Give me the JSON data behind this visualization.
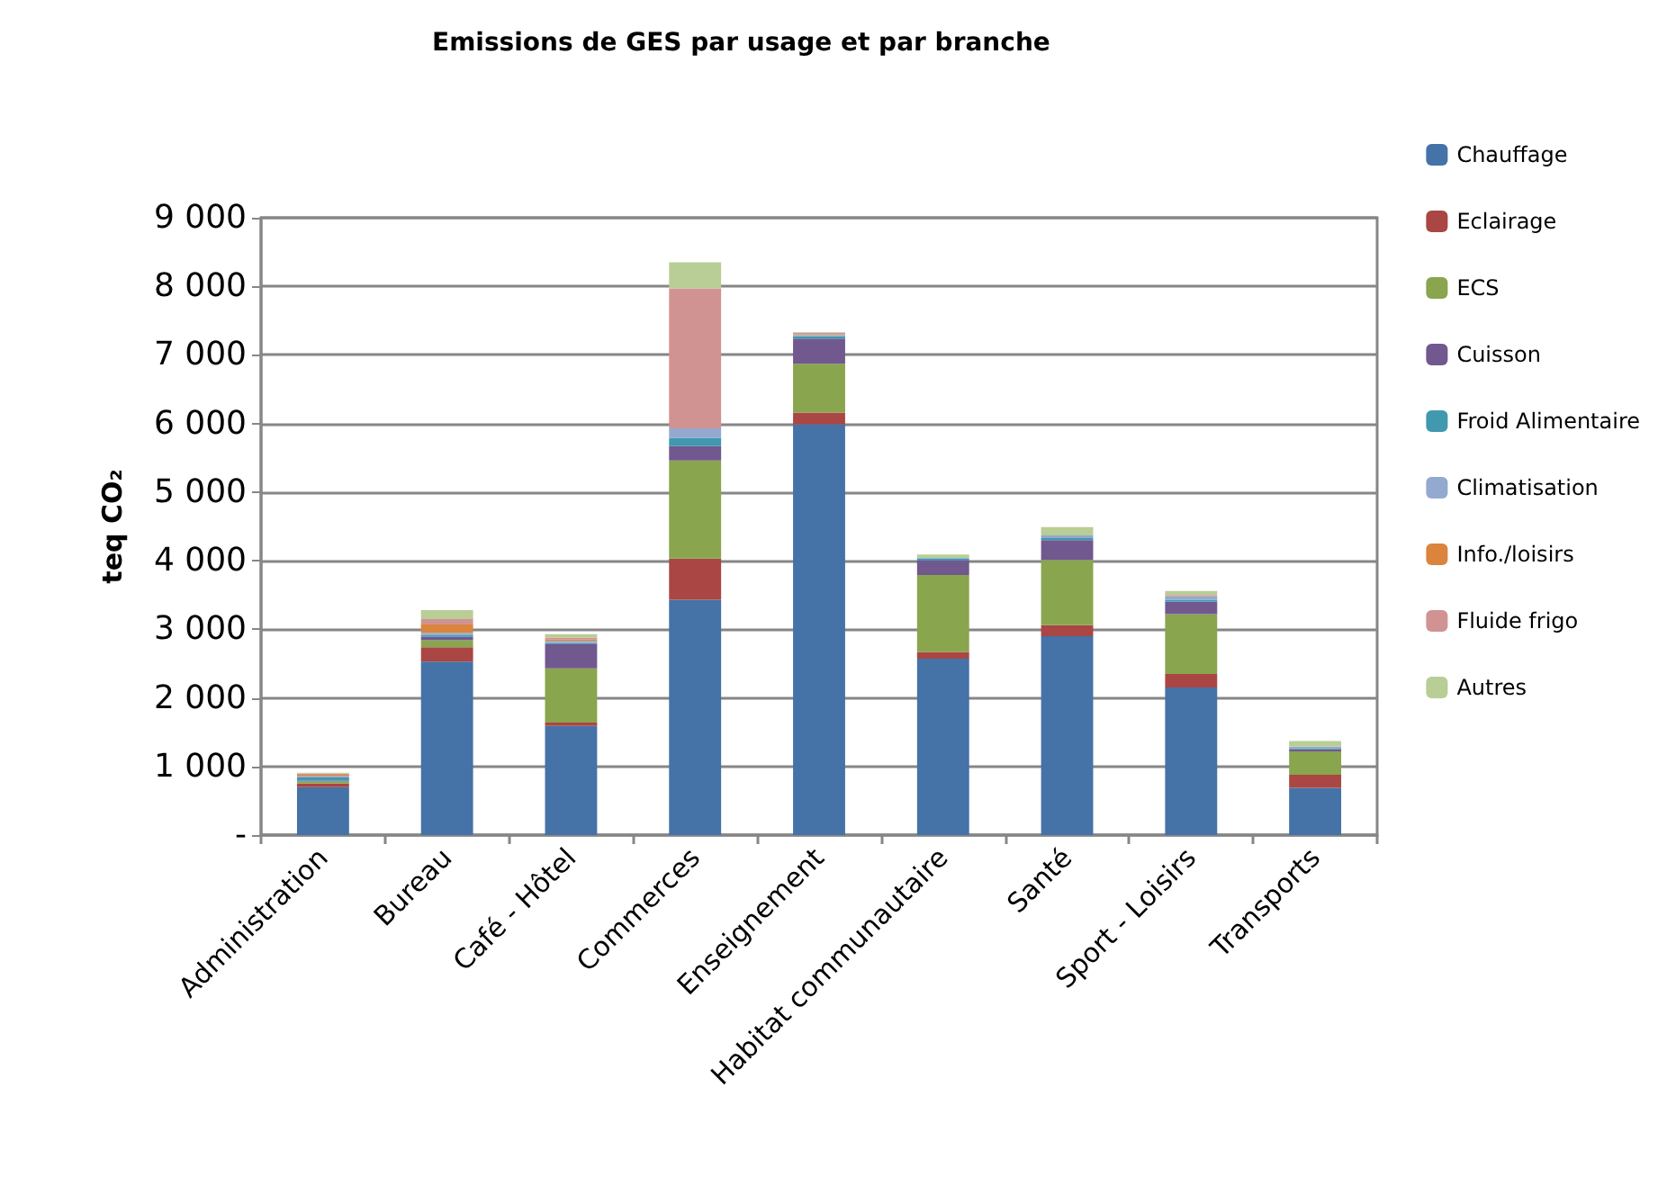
{
  "chart_data": {
    "type": "bar",
    "stacked": true,
    "title": "Emissions de GES par usage et par branche",
    "ylabel": "teq CO₂",
    "categories": [
      "Administration",
      "Bureau",
      "Café - Hôtel",
      "Commerces",
      "Enseignement",
      "Habitat communautaire",
      "Santé",
      "Sport - Loisirs",
      "Transports"
    ],
    "series": [
      {
        "name": "Chauffage",
        "color": "#4572a7",
        "values": [
          700,
          2530,
          1590,
          3430,
          5990,
          2570,
          2900,
          2150,
          690
        ]
      },
      {
        "name": "Eclairage",
        "color": "#aa4643",
        "values": [
          50,
          210,
          50,
          600,
          170,
          100,
          160,
          200,
          190
        ]
      },
      {
        "name": "ECS",
        "color": "#89a54e",
        "values": [
          30,
          100,
          790,
          1430,
          710,
          1120,
          950,
          870,
          340
        ]
      },
      {
        "name": "Cuisson",
        "color": "#71588f",
        "values": [
          10,
          50,
          350,
          210,
          370,
          210,
          290,
          180,
          30
        ]
      },
      {
        "name": "Froid Alimentaire",
        "color": "#4198af",
        "values": [
          50,
          30,
          20,
          120,
          30,
          30,
          30,
          30,
          10
        ]
      },
      {
        "name": "Climatisation",
        "color": "#93a9cf",
        "values": [
          20,
          30,
          30,
          140,
          20,
          10,
          40,
          50,
          30
        ]
      },
      {
        "name": "Info./loisirs",
        "color": "#db843d",
        "values": [
          20,
          120,
          20,
          0,
          10,
          0,
          0,
          0,
          0
        ]
      },
      {
        "name": "Fluide frigo",
        "color": "#d19392",
        "values": [
          20,
          80,
          30,
          2040,
          20,
          0,
          0,
          20,
          0
        ]
      },
      {
        "name": "Autres",
        "color": "#b9cd96",
        "values": [
          10,
          130,
          50,
          380,
          10,
          50,
          120,
          60,
          80
        ]
      }
    ],
    "ylim": [
      0,
      9000
    ],
    "yticks": [
      {
        "value": 0,
        "label": "-"
      },
      {
        "value": 1000,
        "label": "1 000"
      },
      {
        "value": 2000,
        "label": "2 000"
      },
      {
        "value": 3000,
        "label": "3 000"
      },
      {
        "value": 4000,
        "label": "4 000"
      },
      {
        "value": 5000,
        "label": "5 000"
      },
      {
        "value": 6000,
        "label": "6 000"
      },
      {
        "value": 7000,
        "label": "7 000"
      },
      {
        "value": 8000,
        "label": "8 000"
      },
      {
        "value": 9000,
        "label": "9 000"
      }
    ],
    "grid": "y",
    "legend": "right"
  }
}
